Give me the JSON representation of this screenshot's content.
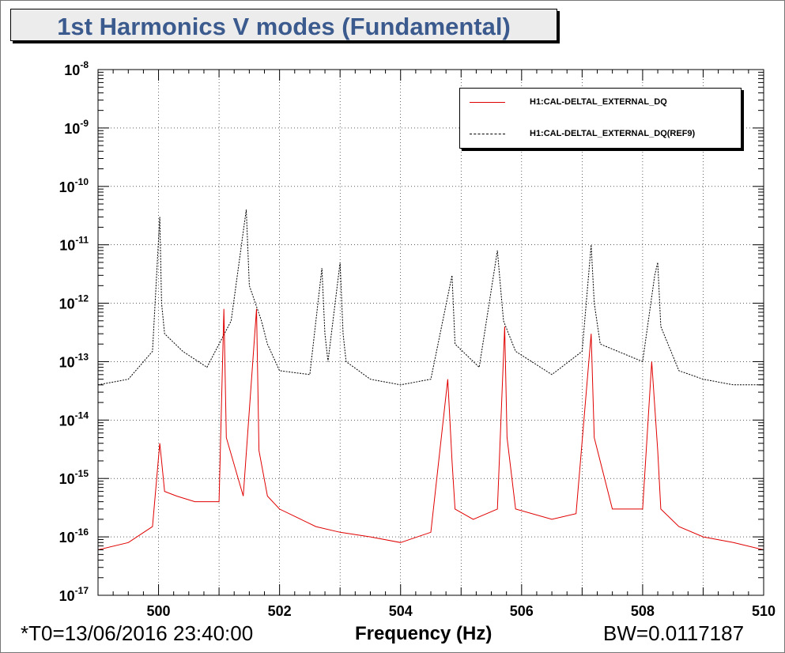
{
  "title": "1st Harmonics V modes (Fundamental)",
  "footer": {
    "t0": "*T0=13/06/2016 23:40:00",
    "xlabel": "Frequency (Hz)",
    "bw": "BW=0.0117187"
  },
  "colors": {
    "series1": "#e00000",
    "series2": "#000000",
    "title": "#3b5a8e"
  },
  "chart_data": {
    "type": "line",
    "title": "1st Harmonics V modes (Fundamental)",
    "xlabel": "Frequency (Hz)",
    "ylabel": "",
    "xlim": [
      499,
      510
    ],
    "ylim": [
      1e-17,
      1e-08
    ],
    "yscale": "log",
    "grid": true,
    "legend_position": "top-right",
    "x_ticks": [
      "500",
      "502",
      "504",
      "506",
      "508",
      "510"
    ],
    "y_ticks": [
      {
        "base": "10",
        "exp": "-8"
      },
      {
        "base": "10",
        "exp": "-9"
      },
      {
        "base": "10",
        "exp": "-10"
      },
      {
        "base": "10",
        "exp": "-11"
      },
      {
        "base": "10",
        "exp": "-12"
      },
      {
        "base": "10",
        "exp": "-13"
      },
      {
        "base": "10",
        "exp": "-14"
      },
      {
        "base": "10",
        "exp": "-15"
      },
      {
        "base": "10",
        "exp": "-16"
      },
      {
        "base": "10",
        "exp": "-17"
      }
    ],
    "series": [
      {
        "name": "H1:CAL-DELTAL_EXTERNAL_DQ",
        "style": "solid",
        "color": "#e00000",
        "x": [
          499.0,
          499.5,
          499.9,
          500.02,
          500.05,
          500.1,
          500.3,
          500.6,
          501.0,
          501.08,
          501.12,
          501.4,
          501.62,
          501.66,
          501.8,
          502.0,
          502.6,
          503.0,
          503.5,
          504.0,
          504.5,
          504.78,
          504.85,
          504.9,
          505.2,
          505.6,
          505.72,
          505.76,
          505.9,
          506.5,
          506.9,
          507.15,
          507.2,
          507.5,
          508.0,
          508.15,
          508.25,
          508.3,
          508.6,
          509.0,
          509.5,
          510.0
        ],
        "y": [
          6e-17,
          8e-17,
          1.5e-16,
          4e-15,
          2e-15,
          6e-16,
          5e-16,
          4e-16,
          4e-16,
          8e-13,
          5e-15,
          5e-16,
          8e-13,
          3e-15,
          5e-16,
          3e-16,
          1.5e-16,
          1.2e-16,
          1e-16,
          8e-17,
          1.2e-16,
          5e-14,
          2e-15,
          3e-16,
          2e-16,
          3e-16,
          4e-13,
          5e-15,
          3e-16,
          2e-16,
          2.5e-16,
          3e-13,
          5e-15,
          3e-16,
          3e-16,
          1e-13,
          3e-15,
          3e-16,
          1.5e-16,
          1e-16,
          8e-17,
          6e-17
        ]
      },
      {
        "name": "H1:CAL-DELTAL_EXTERNAL_DQ(REF9)",
        "style": "dotted",
        "color": "#000000",
        "x": [
          499.0,
          499.5,
          499.9,
          500.02,
          500.05,
          500.1,
          500.4,
          500.8,
          501.2,
          501.45,
          501.5,
          501.7,
          501.8,
          502.0,
          502.5,
          502.7,
          502.75,
          502.8,
          503.0,
          503.05,
          503.1,
          503.5,
          504.0,
          504.5,
          504.85,
          504.9,
          505.3,
          505.6,
          505.65,
          505.7,
          505.9,
          506.5,
          507.0,
          507.15,
          507.2,
          507.3,
          508.0,
          508.2,
          508.25,
          508.3,
          508.6,
          509.0,
          509.5,
          510.0
        ],
        "y": [
          4e-14,
          5e-14,
          1.5e-13,
          3e-11,
          1e-12,
          3e-13,
          1.5e-13,
          8e-14,
          5e-13,
          4e-11,
          2e-12,
          5e-13,
          2e-13,
          7e-14,
          6e-14,
          4e-12,
          3e-13,
          1e-13,
          5e-12,
          3e-13,
          1e-13,
          5e-14,
          4e-14,
          5e-14,
          3e-12,
          2e-13,
          8e-14,
          8e-12,
          2e-12,
          5e-13,
          1.5e-13,
          6e-14,
          1.5e-13,
          1e-11,
          1e-12,
          2e-13,
          1e-13,
          3e-12,
          5e-12,
          4e-13,
          7e-14,
          5e-14,
          4e-14,
          4e-14
        ]
      }
    ]
  }
}
